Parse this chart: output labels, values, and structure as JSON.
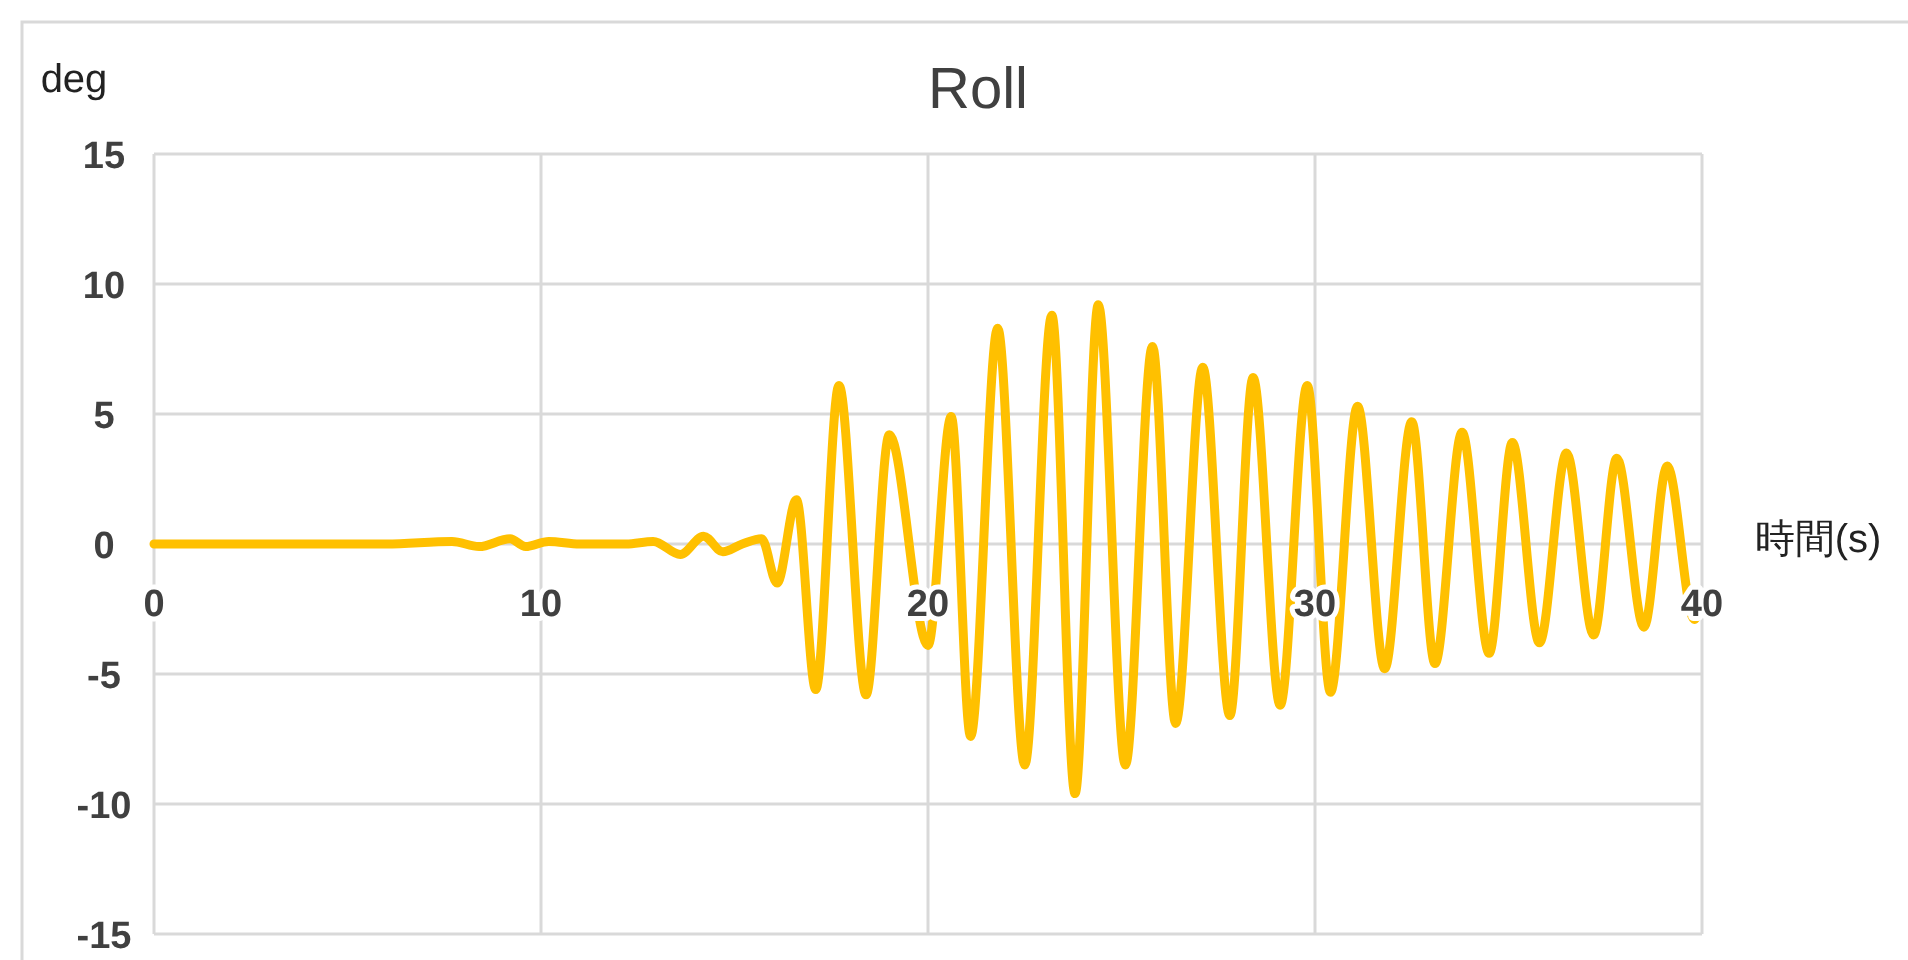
{
  "chart_data": {
    "type": "line",
    "title": "Roll",
    "xlabel": "時間(s)",
    "ylabel": "deg",
    "xlim": [
      0,
      40
    ],
    "ylim": [
      -15,
      15
    ],
    "xticks": [
      0,
      10,
      20,
      30,
      40
    ],
    "yticks": [
      -15,
      -10,
      -5,
      0,
      5,
      10,
      15
    ],
    "grid": true,
    "line_style": "solid",
    "marker": "none",
    "series": [
      {
        "color": "#ffc000",
        "x": [
          0,
          3,
          6,
          7.7,
          8.4,
          9.2,
          9.6,
          10.2,
          11,
          12.2,
          12.9,
          13.6,
          14.2,
          14.7,
          15.2,
          15.7,
          16.1,
          16.6,
          17.1,
          17.7,
          18.4,
          19.0,
          20.0,
          20.6,
          21.1,
          21.8,
          22.5,
          23.2,
          23.8,
          24.4,
          25.1,
          25.8,
          26.4,
          27.1,
          27.8,
          28.4,
          29.1,
          29.8,
          30.4,
          31.1,
          31.8,
          32.5,
          33.1,
          33.8,
          34.5,
          35.1,
          35.8,
          36.5,
          37.2,
          37.8,
          38.5,
          39.1,
          39.8,
          39.95
        ],
        "values": [
          0,
          0,
          0,
          0.1,
          -0.1,
          0.2,
          -0.1,
          0.1,
          0,
          0,
          0.1,
          -0.4,
          0.3,
          -0.3,
          0,
          0.2,
          -1.5,
          1.7,
          -5.6,
          6.1,
          -5.8,
          4.2,
          -3.9,
          4.9,
          -7.4,
          8.3,
          -8.5,
          8.8,
          -9.6,
          9.2,
          -8.5,
          7.6,
          -6.9,
          6.8,
          -6.6,
          6.4,
          -6.2,
          6.1,
          -5.7,
          5.3,
          -4.8,
          4.7,
          -4.6,
          4.3,
          -4.2,
          3.9,
          -3.8,
          3.5,
          -3.5,
          3.3,
          -3.2,
          3.0,
          -2.9,
          -2.5
        ]
      }
    ]
  }
}
